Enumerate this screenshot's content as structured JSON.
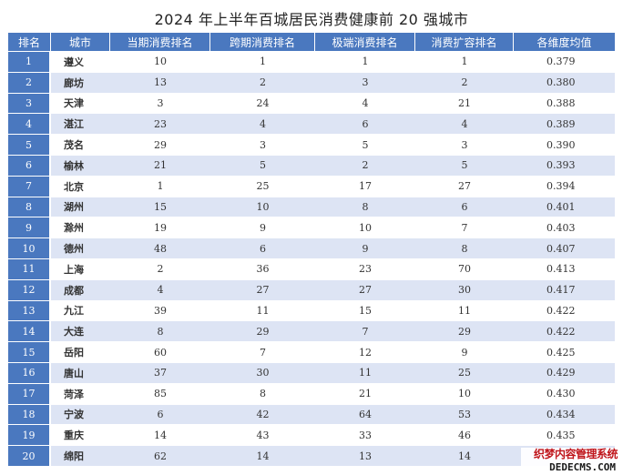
{
  "title": "2024 年上半年百城居民消费健康前 20 强城市",
  "headers": [
    "排名",
    "城市",
    "当期消费排名",
    "跨期消费排名",
    "极端消费排名",
    "消费扩容排名",
    "各维度均值"
  ],
  "rows": [
    {
      "rank": "1",
      "city": "遵义",
      "current": "10",
      "intertemporal": "1",
      "extreme": "1",
      "expansion": "1",
      "avg": "0.379"
    },
    {
      "rank": "2",
      "city": "廊坊",
      "current": "13",
      "intertemporal": "2",
      "extreme": "3",
      "expansion": "2",
      "avg": "0.380"
    },
    {
      "rank": "3",
      "city": "天津",
      "current": "3",
      "intertemporal": "24",
      "extreme": "4",
      "expansion": "21",
      "avg": "0.388"
    },
    {
      "rank": "4",
      "city": "湛江",
      "current": "23",
      "intertemporal": "4",
      "extreme": "6",
      "expansion": "4",
      "avg": "0.389"
    },
    {
      "rank": "5",
      "city": "茂名",
      "current": "29",
      "intertemporal": "3",
      "extreme": "5",
      "expansion": "3",
      "avg": "0.390"
    },
    {
      "rank": "6",
      "city": "榆林",
      "current": "21",
      "intertemporal": "5",
      "extreme": "2",
      "expansion": "5",
      "avg": "0.393"
    },
    {
      "rank": "7",
      "city": "北京",
      "current": "1",
      "intertemporal": "25",
      "extreme": "17",
      "expansion": "27",
      "avg": "0.394"
    },
    {
      "rank": "8",
      "city": "湖州",
      "current": "15",
      "intertemporal": "10",
      "extreme": "8",
      "expansion": "6",
      "avg": "0.401"
    },
    {
      "rank": "9",
      "city": "滁州",
      "current": "19",
      "intertemporal": "9",
      "extreme": "10",
      "expansion": "7",
      "avg": "0.403"
    },
    {
      "rank": "10",
      "city": "德州",
      "current": "48",
      "intertemporal": "6",
      "extreme": "9",
      "expansion": "8",
      "avg": "0.407"
    },
    {
      "rank": "11",
      "city": "上海",
      "current": "2",
      "intertemporal": "36",
      "extreme": "23",
      "expansion": "70",
      "avg": "0.413"
    },
    {
      "rank": "12",
      "city": "成都",
      "current": "4",
      "intertemporal": "27",
      "extreme": "27",
      "expansion": "30",
      "avg": "0.417"
    },
    {
      "rank": "13",
      "city": "九江",
      "current": "39",
      "intertemporal": "11",
      "extreme": "15",
      "expansion": "11",
      "avg": "0.422"
    },
    {
      "rank": "14",
      "city": "大连",
      "current": "8",
      "intertemporal": "29",
      "extreme": "7",
      "expansion": "29",
      "avg": "0.422"
    },
    {
      "rank": "15",
      "city": "岳阳",
      "current": "60",
      "intertemporal": "7",
      "extreme": "12",
      "expansion": "9",
      "avg": "0.425"
    },
    {
      "rank": "16",
      "city": "唐山",
      "current": "37",
      "intertemporal": "30",
      "extreme": "11",
      "expansion": "25",
      "avg": "0.429"
    },
    {
      "rank": "17",
      "city": "菏泽",
      "current": "85",
      "intertemporal": "8",
      "extreme": "21",
      "expansion": "10",
      "avg": "0.430"
    },
    {
      "rank": "18",
      "city": "宁波",
      "current": "6",
      "intertemporal": "42",
      "extreme": "64",
      "expansion": "53",
      "avg": "0.434"
    },
    {
      "rank": "19",
      "city": "重庆",
      "current": "14",
      "intertemporal": "43",
      "extreme": "33",
      "expansion": "46",
      "avg": "0.435"
    },
    {
      "rank": "20",
      "city": "绵阳",
      "current": "62",
      "intertemporal": "14",
      "extreme": "13",
      "expansion": "14",
      "avg": ""
    }
  ],
  "watermark": {
    "line1": "织梦内容管理系统",
    "line2": "DEDECMS.COM"
  },
  "colors": {
    "header_bg": "#4a78bf",
    "stripe": "#dde4f4",
    "watermark_red": "#c0161c"
  }
}
